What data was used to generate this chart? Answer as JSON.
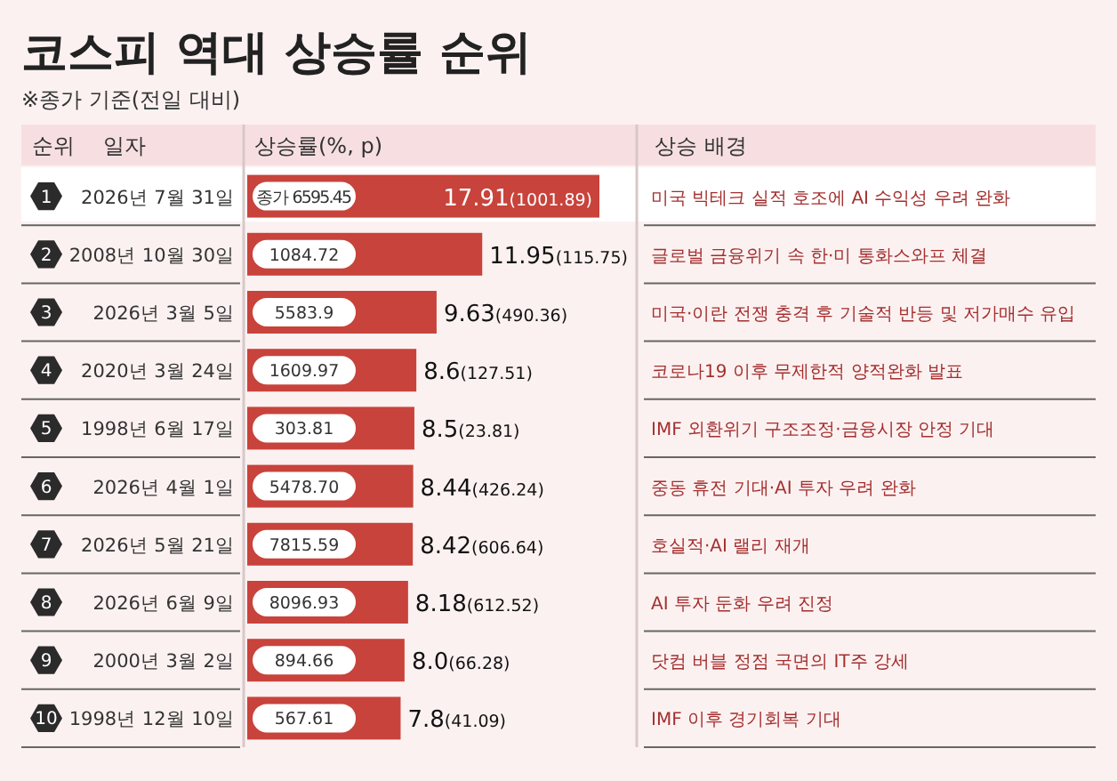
{
  "chart_data": {
    "type": "bar",
    "orientation": "horizontal",
    "title": "코스피 역대 상승률 순위",
    "subtitle": "※종가 기준(전일 대비)",
    "xlabel": "상승률(%, p)",
    "categories": [
      "2026년 7월 31일",
      "2008년 10월 30일",
      "2026년 3월 5일",
      "2020년 3월 24일",
      "1998년 6월 17일",
      "2026년 4월 1일",
      "2026년 5월 21일",
      "2026년 6월 9일",
      "2000년 3월 2일",
      "1998년 12월 10일"
    ],
    "values": [
      17.91,
      11.95,
      9.63,
      8.6,
      8.5,
      8.44,
      8.42,
      8.18,
      8.0,
      7.8
    ],
    "value_labels": [
      "17.91(1001.89)",
      "11.95(115.75)",
      "9.63(490.36)",
      "8.6(127.51)",
      "8.5(23.81)",
      "8.44(426.24)",
      "8.42(606.64)",
      "8.18(612.52)",
      "8.0(66.28)",
      "7.8(41.09)"
    ],
    "color": "#c8433b",
    "annotations": [
      "순위",
      "일자",
      "상승 배경",
      "1",
      "2",
      "3",
      "4",
      "5",
      "6",
      "7",
      "8",
      "9",
      "10",
      "종가 6595.45",
      "1084.72",
      "5583.9",
      "1609.97",
      "303.81",
      "5478.70",
      "7815.59",
      "8096.93",
      "894.66",
      "567.61",
      "미국 빅테크 실적 호조에 AI 수익성 우려 완화",
      "글로벌 금융위기 속 한·미 통화스와프 체결",
      "미국·이란 전쟁 충격 후 기술적 반등 및 저가매수 유입",
      "코로나19 이후 무제한적 양적완화 발표",
      "IMF 외환위기 구조조정·금융시장 안정 기대",
      "중동 휴전 기대·AI 투자 우려 완화",
      "호실적·AI 랠리 재개",
      "AI 투자 둔화 우려 진정",
      "닷컴 버블 정점 국면의 IT주 강세",
      "IMF 이후 경기회복 기대"
    ]
  }
}
